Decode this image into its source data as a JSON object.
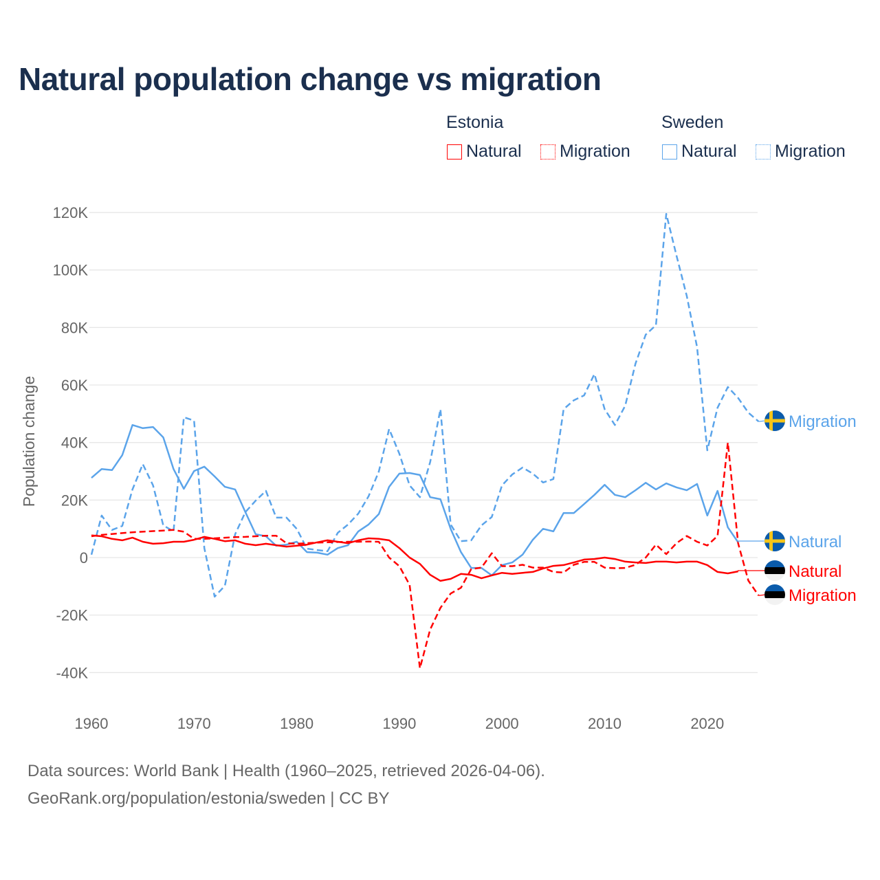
{
  "title": "Natural population change vs migration",
  "legend": {
    "groups": [
      {
        "name": "Estonia",
        "color": "#ff0000",
        "items": [
          "Natural",
          "Migration"
        ]
      },
      {
        "name": "Sweden",
        "color": "#5ba4ea",
        "items": [
          "Natural",
          "Migration"
        ]
      }
    ]
  },
  "footer": {
    "line1": "Data sources: World Bank | Health (1960–2025, retrieved 2026-04-06).",
    "line2": "GeoRank.org/population/estonia/sweden | CC BY"
  },
  "chart_data": {
    "type": "line",
    "title": "Natural population change vs migration",
    "xlabel": "",
    "ylabel": "Population change",
    "xlim": [
      1960,
      2025
    ],
    "ylim": [
      -50000,
      125000
    ],
    "x_ticks": [
      1960,
      1970,
      1980,
      1990,
      2000,
      2010,
      2020
    ],
    "x_tick_labels": [
      "1960",
      "1970",
      "1980",
      "1990",
      "2000",
      "2010",
      "2020"
    ],
    "y_ticks": [
      -40000,
      -20000,
      0,
      20000,
      40000,
      60000,
      80000,
      100000,
      120000
    ],
    "y_tick_labels": [
      "-40K",
      "-20K",
      "0",
      "20K",
      "40K",
      "60K",
      "80K",
      "100K",
      "120K"
    ],
    "grid": true,
    "legend_position": "top-right",
    "series": [
      {
        "name": "Sweden Migration",
        "end_label": "Migration",
        "country": "Sweden",
        "color": "#5ba4ea",
        "dash": true,
        "start": 1960,
        "values": [
          1,
          14.6,
          9.6,
          11,
          23.7,
          32.5,
          25.1,
          11.2,
          9.1,
          48.8,
          47.6,
          3.3,
          -13.6,
          -9.8,
          8.1,
          15.8,
          19.8,
          23.2,
          13.9,
          13.9,
          10,
          3.1,
          2.6,
          2.2,
          8.6,
          11.5,
          15.3,
          21.3,
          29.9,
          44.7,
          36.1,
          25.1,
          21,
          33.2,
          51.6,
          11.5,
          5.7,
          6,
          11.2,
          14.1,
          25.1,
          28.9,
          31.3,
          29.2,
          26.1,
          27.3,
          51.6,
          54.7,
          56.4,
          63.8,
          51.6,
          46.1,
          52.8,
          67.4,
          77.5,
          80.8,
          119.5,
          105,
          91,
          73.2,
          37.3,
          52.1,
          59.3,
          55.5,
          50.4,
          47.3
        ]
      },
      {
        "name": "Sweden Natural",
        "end_label": "Natural",
        "country": "Sweden",
        "color": "#5ba4ea",
        "dash": false,
        "start": 1960,
        "values": [
          27.7,
          30.8,
          30.4,
          35.6,
          46.1,
          45,
          45.4,
          41.8,
          30.8,
          23.9,
          30.1,
          31.6,
          28.2,
          24.6,
          23.7,
          15.8,
          8.1,
          7.4,
          4.1,
          4.5,
          5.5,
          1.9,
          1.7,
          1,
          3.3,
          4.3,
          9.1,
          11.5,
          15.1,
          24.6,
          29.2,
          29.4,
          28.7,
          21,
          20.3,
          10,
          1.9,
          -3.6,
          -3.6,
          -6.2,
          -2.6,
          -1.7,
          1,
          6.2,
          10,
          9.1,
          15.5,
          15.5,
          18.6,
          21.8,
          25.3,
          21.8,
          21,
          23.4,
          26,
          23.7,
          25.8,
          24.4,
          23.4,
          25.6,
          14.6,
          23.2,
          10.5,
          5.3
        ]
      },
      {
        "name": "Estonia Natural",
        "end_label": "Natural",
        "country": "Estonia",
        "color": "#ff0000",
        "dash": false,
        "start": 1960,
        "values": [
          7.7,
          7.4,
          6.5,
          6,
          6.9,
          5.5,
          4.8,
          5,
          5.5,
          5.5,
          6.2,
          7.2,
          6.5,
          5.7,
          6,
          4.8,
          4.3,
          4.8,
          4.3,
          3.8,
          4.1,
          4.5,
          5.3,
          6,
          5.5,
          5,
          6,
          6.7,
          6.5,
          6,
          3.3,
          0,
          -2.2,
          -6,
          -8.1,
          -7.4,
          -5.7,
          -6,
          -7.2,
          -6.2,
          -5.3,
          -5.7,
          -5.3,
          -5,
          -3.8,
          -2.9,
          -2.6,
          -1.7,
          -0.7,
          -0.5,
          0,
          -0.5,
          -1.4,
          -1.7,
          -1.9,
          -1.4,
          -1.4,
          -1.7,
          -1.4,
          -1.4,
          -2.6,
          -5,
          -5.5,
          -4.8
        ]
      },
      {
        "name": "Estonia Migration",
        "end_label": "Migration",
        "country": "Estonia",
        "color": "#ff0000",
        "dash": true,
        "start": 1960,
        "values": [
          7.4,
          7.9,
          8.2,
          8.5,
          8.8,
          9,
          9.2,
          9.4,
          9.6,
          9,
          6.5,
          6.5,
          6.7,
          6.9,
          7.1,
          7.2,
          7.4,
          7.6,
          7.6,
          5,
          4.8,
          5,
          5.2,
          5.3,
          5.4,
          5.5,
          5.5,
          5.6,
          5.5,
          0,
          -3,
          -9.5,
          -38.5,
          -25,
          -17.5,
          -12.5,
          -10.5,
          -4,
          -3.5,
          1.5,
          -3,
          -3,
          -2.5,
          -3.5,
          -3.5,
          -5,
          -5.2,
          -2.5,
          -1.5,
          -1.5,
          -3.5,
          -3.7,
          -3.6,
          -2.5,
          0,
          4.5,
          1.2,
          5,
          7.5,
          5.5,
          4.2,
          7.5,
          40,
          5,
          -8,
          -13.2
        ]
      }
    ],
    "value_unit": "thousands"
  }
}
